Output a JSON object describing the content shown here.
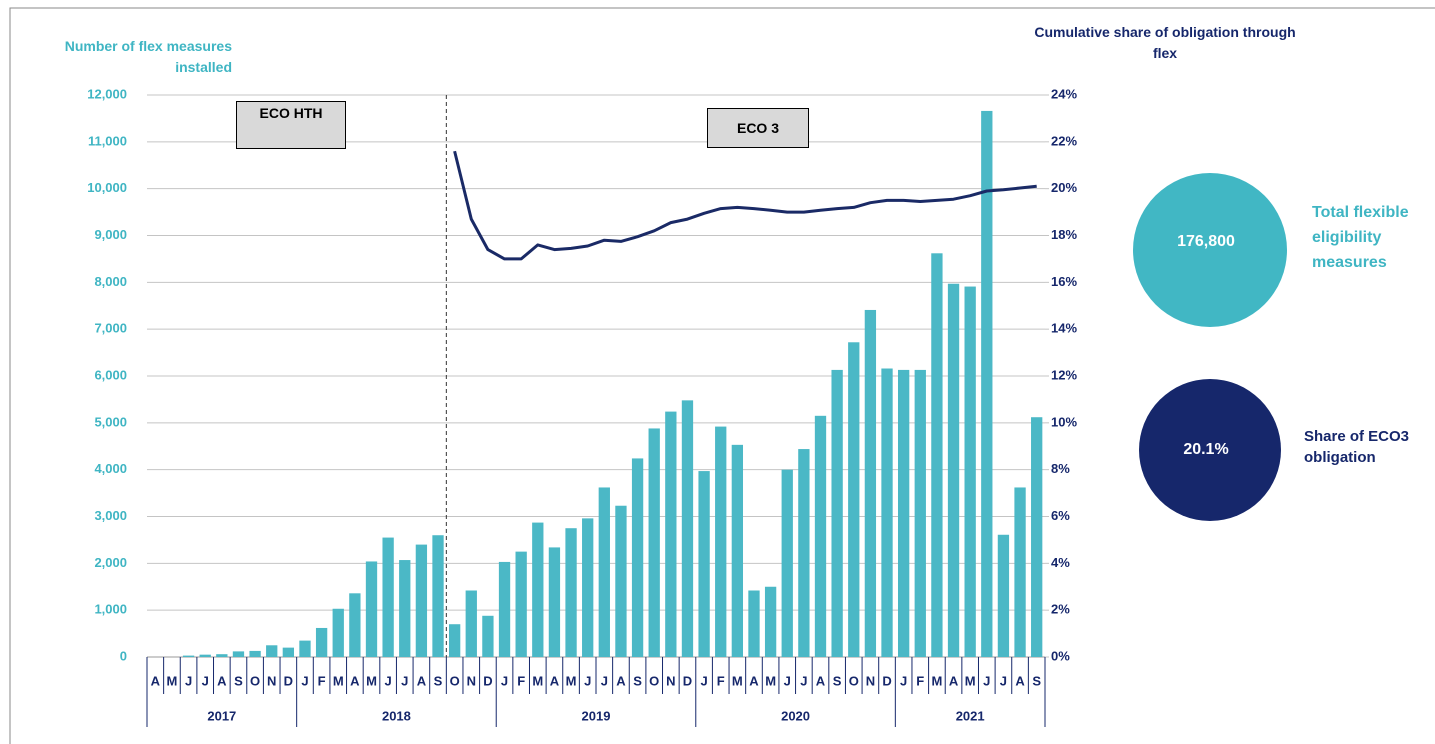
{
  "chart_data": {
    "type": "bar_line",
    "y_title": "Number of flex measures installed",
    "y2_title": "Cumulative share of obligation through flex",
    "category_groups": [
      {
        "label": "2017",
        "categories": [
          "A",
          "M",
          "J",
          "J",
          "A",
          "S",
          "O",
          "N",
          "D"
        ]
      },
      {
        "label": "2018",
        "categories": [
          "J",
          "F",
          "M",
          "A",
          "M",
          "J",
          "J",
          "A",
          "S",
          "O",
          "N",
          "D"
        ]
      },
      {
        "label": "2019",
        "categories": [
          "J",
          "F",
          "M",
          "A",
          "M",
          "J",
          "J",
          "A",
          "S",
          "O",
          "N",
          "D"
        ]
      },
      {
        "label": "2020",
        "categories": [
          "J",
          "F",
          "M",
          "A",
          "M",
          "J",
          "J",
          "A",
          "S",
          "O",
          "N",
          "D"
        ]
      },
      {
        "label": "2021",
        "categories": [
          "J",
          "F",
          "M",
          "A",
          "M",
          "J",
          "J",
          "A",
          "S"
        ]
      }
    ],
    "series": [
      {
        "name": "Flex measures installed",
        "type": "bar",
        "color": "#4bb8c6",
        "values": [
          0,
          0,
          30,
          50,
          60,
          120,
          130,
          250,
          200,
          350,
          620,
          1030,
          1360,
          2040,
          2550,
          2070,
          2400,
          2600,
          700,
          1420,
          880,
          2030,
          2250,
          2870,
          2340,
          2750,
          2960,
          3620,
          3230,
          4240,
          4880,
          5240,
          5480,
          3970,
          4920,
          4530,
          1420,
          1500,
          4000,
          4440,
          5150,
          6130,
          6720,
          7410,
          6160,
          6130,
          6130,
          8620,
          7970,
          7910,
          11660,
          2610,
          3620,
          5120
        ]
      },
      {
        "name": "Cumulative share of obligation through flex",
        "type": "line",
        "axis": "y2",
        "color": "#1a2a66",
        "values": [
          null,
          null,
          null,
          null,
          null,
          null,
          null,
          null,
          null,
          null,
          null,
          null,
          null,
          null,
          null,
          null,
          null,
          null,
          21.6,
          18.7,
          17.4,
          17.0,
          17.0,
          17.6,
          17.4,
          17.45,
          17.55,
          17.8,
          17.75,
          17.95,
          18.2,
          18.55,
          18.7,
          18.95,
          19.15,
          19.2,
          19.15,
          19.08,
          19.0,
          19.0,
          19.08,
          19.15,
          19.2,
          19.4,
          19.5,
          19.5,
          19.45,
          19.5,
          19.55,
          19.7,
          19.9,
          19.95,
          20.03,
          20.1
        ]
      }
    ],
    "ylim": [
      0,
      12000
    ],
    "yticks": [
      0,
      {
        "value": 1000,
        "label": "1,000"
      },
      {
        "value": 2000,
        "label": "2,000"
      },
      {
        "value": 3000,
        "label": "3,000"
      },
      {
        "value": 4000,
        "label": "4,000"
      },
      {
        "value": 5000,
        "label": "5,000"
      },
      {
        "value": 6000,
        "label": "6,000"
      },
      {
        "value": 7000,
        "label": "7,000"
      },
      {
        "value": 8000,
        "label": "8,000"
      },
      {
        "value": 9000,
        "label": "9,000"
      },
      {
        "value": 10000,
        "label": "10,000"
      },
      {
        "value": 11000,
        "label": "11,000"
      },
      {
        "value": 12000,
        "label": "12,000"
      }
    ],
    "y2lim": [
      0,
      24
    ],
    "y2ticks": [
      {
        "value": 0,
        "label": "0%"
      },
      {
        "value": 2,
        "label": "2%"
      },
      {
        "value": 4,
        "label": "4%"
      },
      {
        "value": 6,
        "label": "6%"
      },
      {
        "value": 8,
        "label": "8%"
      },
      {
        "value": 10,
        "label": "10%"
      },
      {
        "value": 12,
        "label": "12%"
      },
      {
        "value": 14,
        "label": "14%"
      },
      {
        "value": 16,
        "label": "16%"
      },
      {
        "value": 18,
        "label": "18%"
      },
      {
        "value": 20,
        "label": "20%"
      },
      {
        "value": 22,
        "label": "22%"
      },
      {
        "value": 24,
        "label": "24%"
      }
    ],
    "grid": true,
    "annotations": [
      "ECO HTH",
      "ECO 3"
    ],
    "callouts": [
      {
        "value": "176,800",
        "label": "Total flexible eligibility measures",
        "color": "#41b7c4"
      },
      {
        "value": "20.1%",
        "label": "Share of ECO3 obligation",
        "color": "#16276b"
      }
    ]
  }
}
